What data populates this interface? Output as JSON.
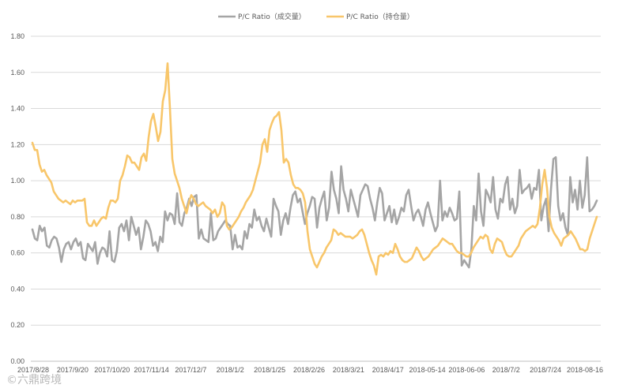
{
  "chart_data": {
    "type": "line",
    "title": "",
    "xlabel": "",
    "ylabel": "",
    "ylim": [
      0,
      1.8
    ],
    "yticks": [
      "0.00",
      "0.20",
      "0.40",
      "0.60",
      "0.80",
      "1.00",
      "1.20",
      "1.40",
      "1.60",
      "1.80"
    ],
    "grid": "horizontal",
    "legend_position": "top",
    "x_tick_labels": [
      "2017/8/28",
      "2017/9/20",
      "2017/10/20",
      "2017/11/14",
      "2017/12/7",
      "2018/1/2",
      "2018/1/25",
      "2018/2/26",
      "2018/3/21",
      "2018/4/17",
      "2018-05-14",
      "2018-06-06",
      "2018/7/2",
      "2018/7/24",
      "2018-08-16"
    ],
    "series": [
      {
        "name": "P/C Ratio（成交量）",
        "color": "#a5a5a5",
        "values": [
          0.73,
          0.68,
          0.67,
          0.75,
          0.72,
          0.74,
          0.64,
          0.63,
          0.67,
          0.69,
          0.68,
          0.63,
          0.55,
          0.62,
          0.65,
          0.66,
          0.62,
          0.66,
          0.68,
          0.64,
          0.66,
          0.57,
          0.56,
          0.65,
          0.63,
          0.61,
          0.66,
          0.54,
          0.6,
          0.63,
          0.62,
          0.58,
          0.72,
          0.56,
          0.55,
          0.61,
          0.74,
          0.76,
          0.72,
          0.78,
          0.67,
          0.8,
          0.75,
          0.7,
          0.74,
          0.62,
          0.69,
          0.78,
          0.76,
          0.72,
          0.64,
          0.66,
          0.61,
          0.69,
          0.66,
          0.83,
          0.78,
          0.82,
          0.81,
          0.76,
          0.93,
          0.77,
          0.75,
          0.82,
          0.85,
          0.9,
          0.86,
          0.91,
          0.92,
          0.68,
          0.73,
          0.68,
          0.67,
          0.66,
          0.82,
          0.67,
          0.68,
          0.72,
          0.74,
          0.76,
          0.78,
          0.76,
          0.75,
          0.62,
          0.7,
          0.63,
          0.64,
          0.62,
          0.72,
          0.68,
          0.76,
          0.74,
          0.84,
          0.78,
          0.8,
          0.75,
          0.72,
          0.79,
          0.74,
          0.69,
          0.9,
          0.86,
          0.83,
          0.7,
          0.78,
          0.82,
          0.76,
          0.85,
          0.92,
          0.94,
          0.88,
          0.9,
          0.83,
          0.76,
          0.82,
          0.86,
          0.91,
          0.9,
          0.74,
          0.85,
          0.9,
          0.94,
          0.78,
          0.85,
          1.05,
          0.95,
          0.9,
          0.82,
          1.08,
          0.95,
          0.9,
          0.83,
          0.95,
          0.9,
          0.85,
          0.8,
          0.92,
          0.95,
          0.98,
          0.97,
          0.9,
          0.85,
          0.78,
          0.88,
          0.96,
          0.93,
          0.78,
          0.82,
          0.86,
          0.77,
          0.84,
          0.76,
          0.8,
          0.85,
          0.83,
          0.92,
          0.95,
          0.86,
          0.78,
          0.82,
          0.84,
          0.8,
          0.75,
          0.84,
          0.88,
          0.82,
          0.77,
          0.72,
          0.75,
          1.0,
          0.78,
          0.83,
          0.8,
          0.85,
          0.82,
          0.78,
          0.79,
          0.94,
          0.53,
          0.56,
          0.54,
          0.52,
          0.62,
          0.86,
          0.78,
          1.04,
          0.83,
          0.75,
          0.95,
          0.92,
          0.88,
          1.02,
          0.84,
          0.79,
          0.9,
          0.88,
          0.98,
          1.02,
          0.84,
          0.9,
          0.82,
          0.86,
          1.06,
          0.93,
          0.95,
          0.96,
          0.98,
          0.9,
          0.96,
          0.95,
          1.06,
          0.78,
          0.86,
          0.9,
          0.72,
          0.95,
          1.12,
          1.13,
          0.86,
          0.78,
          0.82,
          0.74,
          0.7,
          1.02,
          0.88,
          0.95,
          0.84,
          1.0,
          0.85,
          0.92,
          1.13,
          0.83,
          0.84,
          0.86,
          0.89
        ]
      },
      {
        "name": "P/C Ratio（持仓量）",
        "color": "#f8c66a",
        "values": [
          1.21,
          1.17,
          1.17,
          1.09,
          1.05,
          1.06,
          1.03,
          1.01,
          0.99,
          0.94,
          0.92,
          0.9,
          0.89,
          0.88,
          0.89,
          0.88,
          0.87,
          0.89,
          0.88,
          0.89,
          0.89,
          0.89,
          0.9,
          0.77,
          0.75,
          0.75,
          0.78,
          0.75,
          0.77,
          0.79,
          0.8,
          0.79,
          0.85,
          0.89,
          0.89,
          0.88,
          0.9,
          1.0,
          1.03,
          1.08,
          1.14,
          1.13,
          1.1,
          1.1,
          1.08,
          1.06,
          1.13,
          1.15,
          1.11,
          1.24,
          1.33,
          1.37,
          1.3,
          1.22,
          1.27,
          1.44,
          1.5,
          1.65,
          1.4,
          1.12,
          1.04,
          1.0,
          0.96,
          0.9,
          0.86,
          0.82,
          0.88,
          0.92,
          0.9,
          0.87,
          0.86,
          0.87,
          0.88,
          0.86,
          0.85,
          0.84,
          0.82,
          0.84,
          0.8,
          0.82,
          0.88,
          0.86,
          0.75,
          0.73,
          0.74,
          0.76,
          0.78,
          0.8,
          0.83,
          0.85,
          0.88,
          0.9,
          0.92,
          0.95,
          1.0,
          1.05,
          1.1,
          1.2,
          1.23,
          1.16,
          1.28,
          1.32,
          1.35,
          1.36,
          1.38,
          1.28,
          1.1,
          1.12,
          1.1,
          1.03,
          0.98,
          0.96,
          0.96,
          0.95,
          0.93,
          0.88,
          0.72,
          0.62,
          0.58,
          0.54,
          0.52,
          0.55,
          0.58,
          0.6,
          0.63,
          0.65,
          0.67,
          0.73,
          0.72,
          0.7,
          0.71,
          0.7,
          0.69,
          0.69,
          0.69,
          0.68,
          0.69,
          0.7,
          0.72,
          0.73,
          0.7,
          0.65,
          0.6,
          0.56,
          0.53,
          0.48,
          0.58,
          0.59,
          0.58,
          0.6,
          0.59,
          0.61,
          0.6,
          0.65,
          0.62,
          0.58,
          0.56,
          0.55,
          0.55,
          0.56,
          0.57,
          0.6,
          0.63,
          0.61,
          0.58,
          0.56,
          0.57,
          0.58,
          0.6,
          0.62,
          0.63,
          0.64,
          0.66,
          0.68,
          0.67,
          0.66,
          0.65,
          0.65,
          0.63,
          0.61,
          0.6,
          0.6,
          0.59,
          0.58,
          0.58,
          0.6,
          0.63,
          0.65,
          0.67,
          0.69,
          0.68,
          0.7,
          0.69,
          0.62,
          0.6,
          0.65,
          0.68,
          0.67,
          0.66,
          0.62,
          0.59,
          0.58,
          0.58,
          0.6,
          0.62,
          0.64,
          0.68,
          0.7,
          0.72,
          0.73,
          0.74,
          0.75,
          0.74,
          0.76,
          0.85,
          0.98,
          1.06,
          0.96,
          0.8,
          0.74,
          0.71,
          0.69,
          0.67,
          0.64,
          0.68,
          0.69,
          0.7,
          0.72,
          0.7,
          0.68,
          0.65,
          0.62,
          0.62,
          0.61,
          0.62,
          0.68,
          0.72,
          0.76,
          0.8
        ]
      }
    ]
  },
  "watermark": "©六鼎跨境"
}
